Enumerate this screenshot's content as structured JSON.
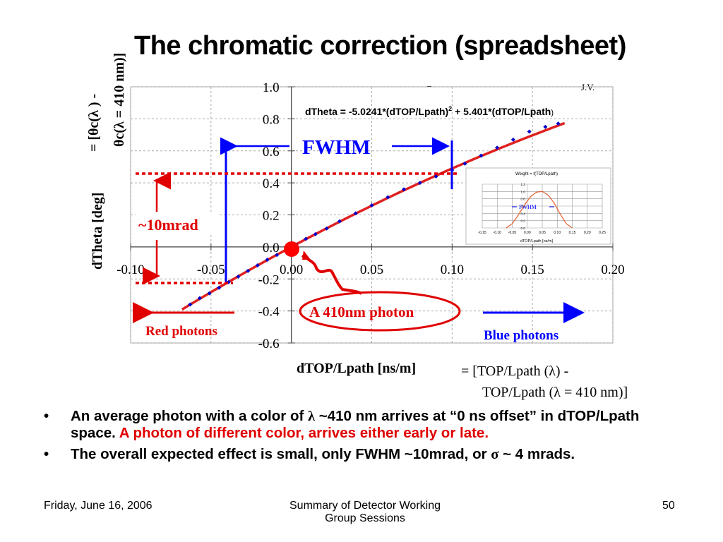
{
  "slide": {
    "title": "The chromatic correction (spreadsheet)",
    "stray_marks": [
      "–",
      "J.V."
    ]
  },
  "chart_data": [
    {
      "type": "scatter",
      "title": "",
      "equation": "dTheta = -5.0241*(dTOP/Lpath)² + 5.401*(dTOP/Lpath)",
      "equation_main": "dTheta = -5.0241*(dTOP/Lpath)",
      "equation_sup": "2",
      "equation_rest": " + 5.401*(dTOP/Lpath",
      "equation_close": ")",
      "xlabel": "dTOP/Lpath [ns/m]",
      "ylabel": "dTheta [deg]",
      "ylabel_rotated_1": "= [θc(λ ) -",
      "ylabel_rotated_2": "θc(λ = 410 nm)]",
      "xlim": [
        -0.1,
        0.2
      ],
      "ylim": [
        -0.6,
        1.0
      ],
      "x_ticks": [
        "-0.10",
        "-0.05",
        "0.00",
        "0.05",
        "0.10",
        "0.15",
        "0.20"
      ],
      "y_ticks": [
        "1.0",
        "0.8",
        "0.6",
        "0.4",
        "0.2",
        "0.0",
        "-0.2",
        "-0.4",
        "-0.6"
      ],
      "grid": true,
      "fit_coefficients": {
        "a": -5.0241,
        "b": 5.401
      },
      "series": [
        {
          "color": "#0000cc",
          "x": [
            -0.063,
            -0.057,
            -0.051,
            -0.045,
            -0.039,
            -0.033,
            -0.027,
            -0.021,
            -0.015,
            -0.009,
            -0.003,
            0.003,
            0.009,
            0.015,
            0.022,
            0.03,
            0.04,
            0.05,
            0.06,
            0.07,
            0.08,
            0.09,
            0.1,
            0.108,
            0.118,
            0.128,
            0.138,
            0.148,
            0.158,
            0.166
          ],
          "y": [
            -0.36,
            -0.32,
            -0.29,
            -0.255,
            -0.22,
            -0.185,
            -0.15,
            -0.115,
            -0.08,
            -0.05,
            -0.015,
            0.015,
            0.05,
            0.08,
            0.115,
            0.16,
            0.21,
            0.26,
            0.31,
            0.36,
            0.4,
            0.44,
            0.48,
            0.52,
            0.57,
            0.62,
            0.67,
            0.72,
            0.75,
            0.77
          ]
        }
      ],
      "annotations": {
        "fwhm": "FWHM",
        "mrad": "~10mrad",
        "photon_410": "A 410nm photon",
        "red_photons": "Red photons",
        "blue_photons": "Blue photons",
        "xlabel_alt_1": "= [TOP/Lpath (λ) -",
        "xlabel_alt_2": "TOP/Lpath (λ = 410 nm)]"
      },
      "colors": {
        "fit": "#e02020",
        "points": "#0000cc",
        "annotation_red": "#e00000",
        "annotation_blue": "#0000ff"
      }
    },
    {
      "type": "line",
      "title": "Weight = f(TOP/Lpath)",
      "xlabel": "dTOP/Lpath [ns/m]",
      "ylabel": "",
      "xlim": [
        -0.15,
        0.25
      ],
      "ylim": [
        0.0,
        1.2
      ],
      "x_ticks": [
        "-0.15",
        "-0.10",
        "-0.05",
        "0.00",
        "0.05",
        "0.10",
        "0.15",
        "0.20",
        "0.25"
      ],
      "y_ticks": [
        "1.2",
        "1.0",
        "0.8",
        "0.6",
        "0.4",
        "0.2",
        "0.0"
      ],
      "grid": true,
      "annotation": "FWHM",
      "series": [
        {
          "color": "#e06030",
          "x": [
            -0.07,
            -0.05,
            -0.03,
            -0.01,
            0.01,
            0.03,
            0.05,
            0.07,
            0.09,
            0.11,
            0.13,
            0.15
          ],
          "y": [
            0.0,
            0.12,
            0.35,
            0.62,
            0.85,
            0.98,
            1.0,
            0.9,
            0.68,
            0.38,
            0.12,
            0.0
          ]
        }
      ]
    }
  ],
  "bullets": [
    {
      "segments": [
        {
          "text": "An average photon with a color of ",
          "color": "black"
        },
        {
          "text": "λ",
          "color": "black",
          "font": "serif"
        },
        {
          "text": " ~410 nm arrives at “0 ns offset” in dTOP/Lpath space. ",
          "color": "black"
        },
        {
          "text": "A photon of different color, arrives either early or late.",
          "color": "red"
        }
      ]
    },
    {
      "segments": [
        {
          "text": "The overall expected effect is small, only FWHM ~10mrad, or ",
          "color": "black"
        },
        {
          "text": "σ",
          "color": "black",
          "font": "serif"
        },
        {
          "text": " ~ 4 mrads.",
          "color": "black"
        }
      ]
    }
  ],
  "footer": {
    "date": "Friday, June 16, 2006",
    "center_line1": "Summary of Detector Working",
    "center_line2": "Group  Sessions",
    "page": "50"
  }
}
